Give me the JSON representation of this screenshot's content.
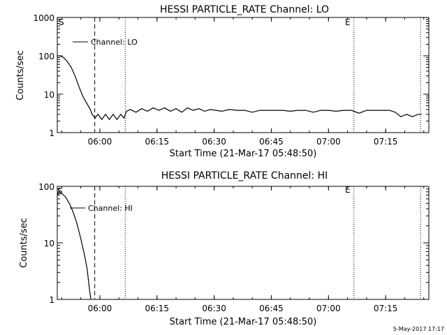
{
  "chart_data": [
    {
      "type": "line",
      "title": "HESSI PARTICLE_RATE Channel: LO",
      "xlabel": "Start Time (21-Mar-17 05:48:50)",
      "ylabel": "Counts/sec",
      "yscale": "log",
      "ylim": [
        1,
        1000
      ],
      "xlim": [
        "05:48:50",
        "07:26:20"
      ],
      "xticks": [
        "06:00",
        "06:15",
        "06:30",
        "06:45",
        "07:00",
        "07:15"
      ],
      "yticks": [
        "1",
        "10",
        "100",
        "1000"
      ],
      "legend": "top-left",
      "series": [
        {
          "name": "Channel: LO",
          "x": [
            "05:48:50",
            "05:49:30",
            "05:50:30",
            "05:51:30",
            "05:52:30",
            "05:53:30",
            "05:54:30",
            "05:55:30",
            "05:56:30",
            "05:57:30",
            "05:58:00",
            "05:58:45",
            "05:59:30",
            "06:00:30",
            "06:01:30",
            "06:02:30",
            "06:03:30",
            "06:04:30",
            "06:05:30",
            "06:06:20",
            "06:07:00",
            "06:08:00",
            "06:09:30",
            "06:11:00",
            "06:12:30",
            "06:14:00",
            "06:15:30",
            "06:17:00",
            "06:18:30",
            "06:20:00",
            "06:21:30",
            "06:23:00",
            "06:24:30",
            "06:26:00",
            "06:27:30",
            "06:29:00",
            "06:30:30",
            "06:32:00",
            "06:34:00",
            "06:36:00",
            "06:38:00",
            "06:40:00",
            "06:42:00",
            "06:44:00",
            "06:46:00",
            "06:48:00",
            "06:50:00",
            "06:52:00",
            "06:54:00",
            "06:56:00",
            "06:58:00",
            "07:00:00",
            "07:02:00",
            "07:04:00",
            "07:06:00",
            "07:08:00",
            "07:10:00",
            "07:12:00",
            "07:14:00",
            "07:16:00",
            "07:17:30",
            "07:19:00",
            "07:20:30",
            "07:22:00",
            "07:23:30",
            "07:24:30"
          ],
          "y": [
            100,
            100,
            90,
            70,
            50,
            30,
            16,
            9,
            6,
            4,
            3,
            2.4,
            3,
            2.2,
            3,
            2.2,
            3,
            2.2,
            3,
            2.4,
            3.6,
            4,
            3.4,
            4.2,
            3.6,
            4.4,
            3.8,
            4.4,
            3.6,
            4.2,
            3.4,
            4.4,
            3.8,
            4.2,
            3.6,
            4,
            3.8,
            3.6,
            4,
            3.8,
            3.8,
            3.4,
            3.8,
            3.8,
            3.8,
            3.8,
            3.6,
            3.8,
            3.8,
            3.4,
            3.8,
            3.8,
            3.6,
            3.8,
            3.8,
            3.2,
            3.8,
            3.8,
            3.8,
            3.8,
            3.4,
            2.6,
            3,
            2.6,
            3,
            3
          ]
        }
      ]
    },
    {
      "type": "line",
      "title": "HESSI PARTICLE_RATE Channel: HI",
      "xlabel": "Start Time (21-Mar-17 05:48:50)",
      "ylabel": "Counts/sec",
      "yscale": "log",
      "ylim": [
        1,
        100
      ],
      "xlim": [
        "05:48:50",
        "07:26:20"
      ],
      "xticks": [
        "06:00",
        "06:15",
        "06:30",
        "06:45",
        "07:00",
        "07:15"
      ],
      "yticks": [
        "1",
        "10",
        "100"
      ],
      "legend": "top-left",
      "series": [
        {
          "name": "Channel: HI",
          "x": [
            "05:48:50",
            "05:49:20",
            "05:50:00",
            "05:51:00",
            "05:52:00",
            "05:53:00",
            "05:54:00",
            "05:55:00",
            "05:56:00",
            "05:56:40",
            "05:57:00",
            "05:57:20",
            "05:57:40"
          ],
          "y": [
            70,
            80,
            75,
            65,
            50,
            35,
            22,
            12,
            6,
            3.5,
            2.2,
            1.4,
            1
          ]
        }
      ]
    }
  ],
  "markers": {
    "dashed": "05:58:40",
    "dotted": [
      "06:06:40",
      "07:06:40",
      "07:24:10"
    ],
    "start_label": "S",
    "end_label": "E"
  },
  "footer": {
    "timestamp": "5-May-2017 17:17"
  },
  "colors": {
    "background": "#ffffff",
    "foreground": "#000000"
  }
}
